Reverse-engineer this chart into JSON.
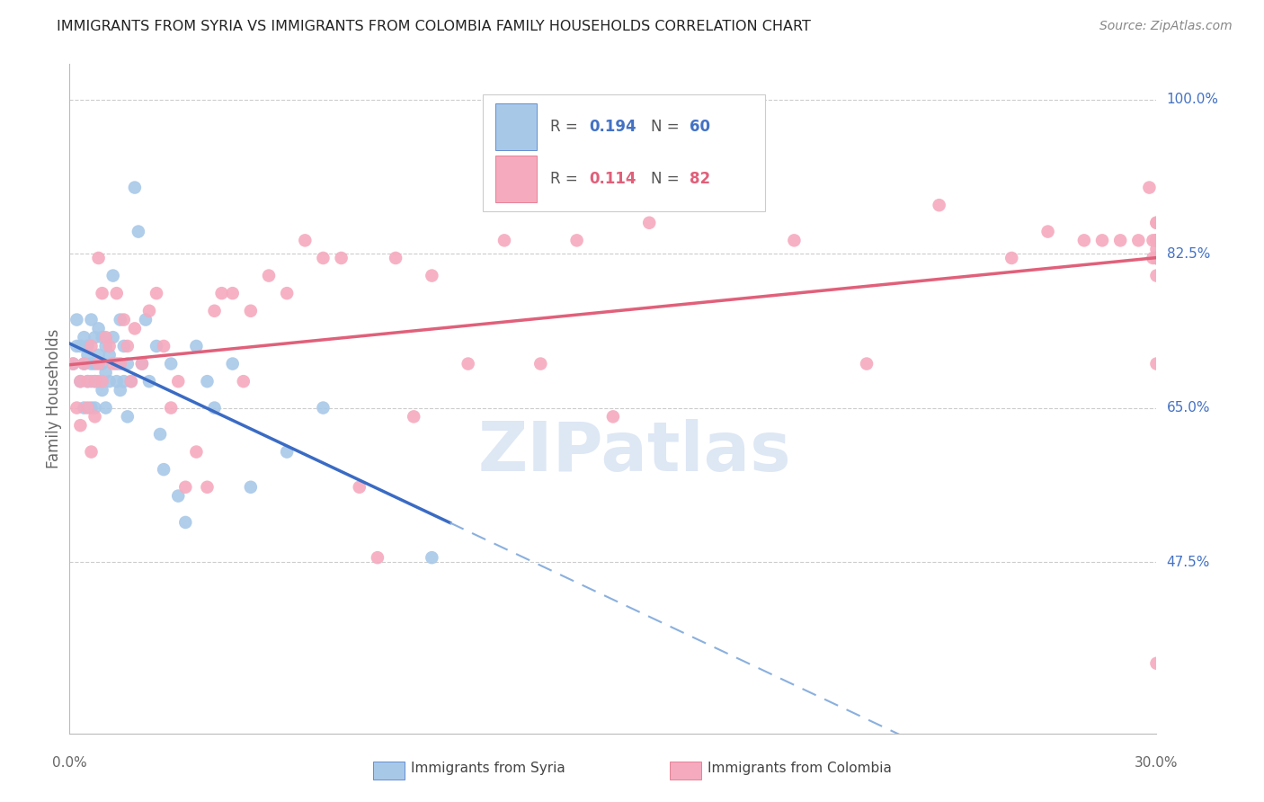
{
  "title": "IMMIGRANTS FROM SYRIA VS IMMIGRANTS FROM COLOMBIA FAMILY HOUSEHOLDS CORRELATION CHART",
  "source": "Source: ZipAtlas.com",
  "ylabel": "Family Households",
  "xlim": [
    0.0,
    0.3
  ],
  "ylim": [
    0.28,
    1.04
  ],
  "ytick_vals": [
    0.475,
    0.65,
    0.825,
    1.0
  ],
  "ytick_labels_right": [
    "47.5%",
    "65.0%",
    "82.5%",
    "100.0%"
  ],
  "xtick_labels": [
    "0.0%",
    "30.0%"
  ],
  "syria_R": "0.194",
  "syria_N": "60",
  "colombia_R": "0.114",
  "colombia_N": "82",
  "syria_color": "#a8c8e8",
  "colombia_color": "#f5aabe",
  "trend_syria_solid_color": "#3a6bc4",
  "trend_syria_dash_color": "#8ab0de",
  "trend_colombia_color": "#e0607a",
  "label_color": "#4472c4",
  "background_color": "#ffffff",
  "syria_x": [
    0.001,
    0.002,
    0.002,
    0.003,
    0.003,
    0.004,
    0.004,
    0.004,
    0.005,
    0.005,
    0.005,
    0.006,
    0.006,
    0.006,
    0.006,
    0.007,
    0.007,
    0.007,
    0.007,
    0.008,
    0.008,
    0.008,
    0.009,
    0.009,
    0.009,
    0.01,
    0.01,
    0.01,
    0.011,
    0.011,
    0.012,
    0.012,
    0.013,
    0.013,
    0.014,
    0.014,
    0.015,
    0.015,
    0.016,
    0.016,
    0.017,
    0.018,
    0.019,
    0.02,
    0.021,
    0.022,
    0.024,
    0.025,
    0.026,
    0.028,
    0.03,
    0.032,
    0.035,
    0.038,
    0.04,
    0.045,
    0.05,
    0.06,
    0.07,
    0.1
  ],
  "syria_y": [
    0.7,
    0.75,
    0.72,
    0.72,
    0.68,
    0.73,
    0.7,
    0.65,
    0.72,
    0.68,
    0.71,
    0.75,
    0.7,
    0.68,
    0.65,
    0.73,
    0.7,
    0.68,
    0.65,
    0.74,
    0.71,
    0.68,
    0.73,
    0.7,
    0.67,
    0.72,
    0.69,
    0.65,
    0.71,
    0.68,
    0.8,
    0.73,
    0.7,
    0.68,
    0.75,
    0.67,
    0.72,
    0.68,
    0.7,
    0.64,
    0.68,
    0.9,
    0.85,
    0.7,
    0.75,
    0.68,
    0.72,
    0.62,
    0.58,
    0.7,
    0.55,
    0.52,
    0.72,
    0.68,
    0.65,
    0.7,
    0.56,
    0.6,
    0.65,
    0.48
  ],
  "colombia_x": [
    0.001,
    0.002,
    0.003,
    0.003,
    0.004,
    0.005,
    0.005,
    0.006,
    0.006,
    0.007,
    0.007,
    0.008,
    0.008,
    0.009,
    0.009,
    0.01,
    0.011,
    0.012,
    0.013,
    0.014,
    0.015,
    0.016,
    0.017,
    0.018,
    0.02,
    0.022,
    0.024,
    0.026,
    0.028,
    0.03,
    0.032,
    0.035,
    0.038,
    0.04,
    0.042,
    0.045,
    0.048,
    0.05,
    0.055,
    0.06,
    0.065,
    0.07,
    0.075,
    0.08,
    0.085,
    0.09,
    0.095,
    0.1,
    0.11,
    0.12,
    0.13,
    0.14,
    0.15,
    0.16,
    0.17,
    0.18,
    0.2,
    0.22,
    0.24,
    0.26,
    0.27,
    0.28,
    0.285,
    0.29,
    0.295,
    0.298,
    0.299,
    0.299,
    0.3,
    0.3,
    0.3,
    0.3,
    0.3,
    0.3,
    0.3,
    0.3,
    0.3,
    0.3,
    0.3,
    0.3,
    0.3,
    0.3
  ],
  "colombia_y": [
    0.7,
    0.65,
    0.68,
    0.63,
    0.7,
    0.68,
    0.65,
    0.72,
    0.6,
    0.68,
    0.64,
    0.82,
    0.7,
    0.78,
    0.68,
    0.73,
    0.72,
    0.7,
    0.78,
    0.7,
    0.75,
    0.72,
    0.68,
    0.74,
    0.7,
    0.76,
    0.78,
    0.72,
    0.65,
    0.68,
    0.56,
    0.6,
    0.56,
    0.76,
    0.78,
    0.78,
    0.68,
    0.76,
    0.8,
    0.78,
    0.84,
    0.82,
    0.82,
    0.56,
    0.48,
    0.82,
    0.64,
    0.8,
    0.7,
    0.84,
    0.7,
    0.84,
    0.64,
    0.86,
    0.88,
    0.9,
    0.84,
    0.7,
    0.88,
    0.82,
    0.85,
    0.84,
    0.84,
    0.84,
    0.84,
    0.9,
    0.82,
    0.84,
    0.86,
    0.84,
    0.82,
    0.36,
    0.86,
    0.84,
    0.82,
    0.7,
    0.82,
    0.8,
    0.84,
    0.82,
    0.84,
    0.83
  ]
}
